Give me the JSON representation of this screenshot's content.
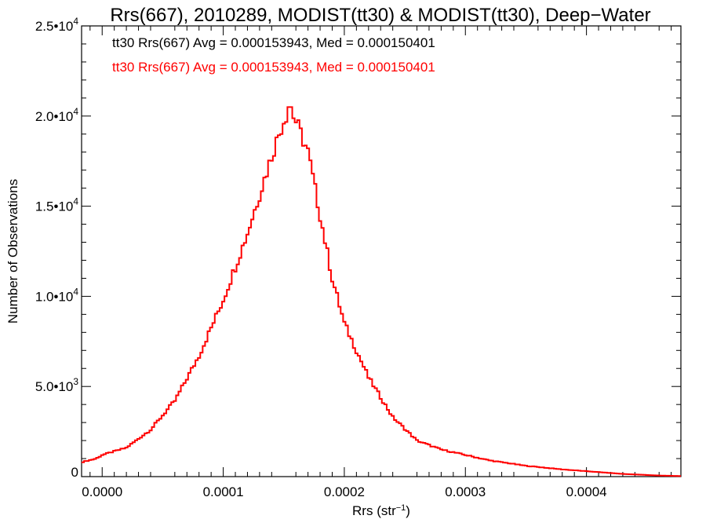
{
  "chart_data": {
    "type": "histogram-step",
    "title": "Rrs(667), 2010289, MODIST(tt30) & MODIST(tt30), Deep−Water",
    "xlabel_main": "Rrs (str",
    "xlabel_sup": "−1",
    "xlabel_end": ")",
    "ylabel": "Number of Observations",
    "xlim": [
      -1.7e-05,
      0.000478
    ],
    "ylim": [
      0,
      25000
    ],
    "x_ticks": [
      {
        "value": 0.0,
        "label": "0.0000"
      },
      {
        "value": 0.0001,
        "label": "0.0001"
      },
      {
        "value": 0.0002,
        "label": "0.0002"
      },
      {
        "value": 0.0003,
        "label": "0.0003"
      },
      {
        "value": 0.0004,
        "label": "0.0004"
      }
    ],
    "y_ticks": [
      {
        "value": 0,
        "mant": "0",
        "exp": ""
      },
      {
        "value": 5000,
        "mant": "5.0•10",
        "exp": "3"
      },
      {
        "value": 10000,
        "mant": "1.0•10",
        "exp": "4"
      },
      {
        "value": 15000,
        "mant": "1.5•10",
        "exp": "4"
      },
      {
        "value": 20000,
        "mant": "2.0•10",
        "exp": "4"
      },
      {
        "value": 25000,
        "mant": "2.5•10",
        "exp": "4"
      }
    ],
    "legend": [
      {
        "text": "tt30 Rrs(667) Avg = 0.000153943, Med = 0.000150401",
        "color": "#000000"
      },
      {
        "text": "tt30 Rrs(667) Avg = 0.000153943, Med = 0.000150401",
        "color": "#ff0000"
      }
    ],
    "series": [
      {
        "color": "#ff0000",
        "bin_width": 2e-06,
        "bin_start": -1.7e-05,
        "peak_x": 0.000155,
        "peak_y": 20500,
        "keypoints": [
          [
            -1.7e-05,
            800
          ],
          [
            -5e-06,
            1000
          ],
          [
            0.0,
            1200
          ],
          [
            2e-05,
            1600
          ],
          [
            4e-05,
            2600
          ],
          [
            6e-05,
            4200
          ],
          [
            8e-05,
            6700
          ],
          [
            0.0001,
            9800
          ],
          [
            0.00012,
            13500
          ],
          [
            0.00014,
            17800
          ],
          [
            0.00015,
            19800
          ],
          [
            0.000155,
            20500
          ],
          [
            0.00016,
            19700
          ],
          [
            0.00017,
            18000
          ],
          [
            0.00018,
            14500
          ],
          [
            0.00019,
            11000
          ],
          [
            0.0002,
            8500
          ],
          [
            0.00022,
            5500
          ],
          [
            0.00024,
            3300
          ],
          [
            0.00026,
            2000
          ],
          [
            0.00028,
            1500
          ],
          [
            0.0003,
            1200
          ],
          [
            0.00032,
            900
          ],
          [
            0.00035,
            600
          ],
          [
            0.00038,
            400
          ],
          [
            0.0004,
            300
          ],
          [
            0.00043,
            150
          ],
          [
            0.00046,
            60
          ],
          [
            0.000478,
            30
          ]
        ]
      }
    ]
  }
}
